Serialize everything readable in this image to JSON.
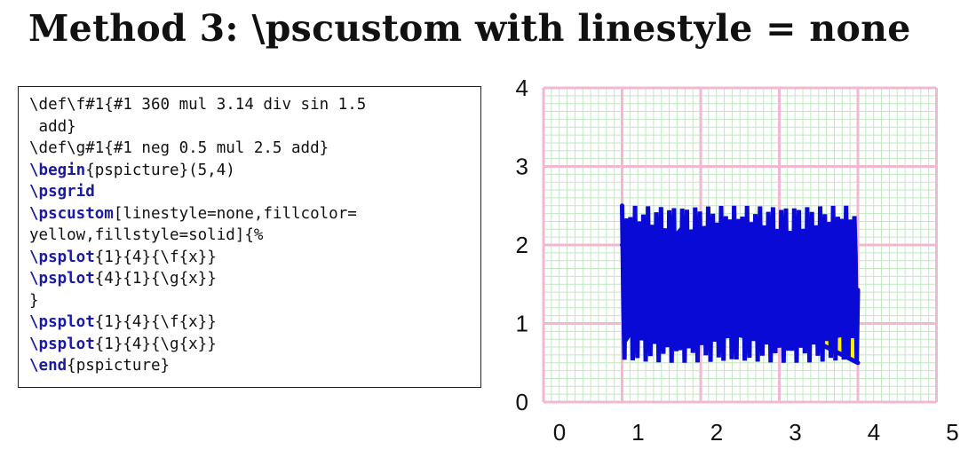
{
  "title": "Method 3: \\pscustom with linestyle = none",
  "code": {
    "lines": [
      [
        {
          "t": "\\def\\f#1{#1 360 mul 3.14 div sin 1.5",
          "k": false
        }
      ],
      [
        {
          "t": " add}",
          "k": false
        }
      ],
      [
        {
          "t": "\\def\\g#1{#1 neg 0.5 mul 2.5 add}",
          "k": false
        }
      ],
      [
        {
          "t": "\\begin",
          "k": true
        },
        {
          "t": "{pspicture}(5,4)",
          "k": false
        }
      ],
      [
        {
          "t": "\\psgrid",
          "k": true
        }
      ],
      [
        {
          "t": "\\pscustom",
          "k": true
        },
        {
          "t": "[linestyle=none,fillcolor=",
          "k": false
        }
      ],
      [
        {
          "t": "yellow,fillstyle=solid]{%",
          "k": false
        }
      ],
      [
        {
          "t": "\\psplot",
          "k": true
        },
        {
          "t": "{1}{4}{\\f{x}}",
          "k": false
        }
      ],
      [
        {
          "t": "\\psplot",
          "k": true
        },
        {
          "t": "{4}{1}{\\g{x}}",
          "k": false
        }
      ],
      [
        {
          "t": "}",
          "k": false
        }
      ],
      [
        {
          "t": "\\psplot",
          "k": true
        },
        {
          "t": "{1}{4}{\\f{x}}",
          "k": false
        }
      ],
      [
        {
          "t": "\\psplot",
          "k": true
        },
        {
          "t": "{1}{4}{\\g{x}}",
          "k": false
        }
      ],
      [
        {
          "t": "\\end",
          "k": true
        },
        {
          "t": "{pspicture}",
          "k": false
        }
      ]
    ]
  },
  "chart_data": {
    "type": "line",
    "xlim": [
      0,
      5
    ],
    "ylim": [
      0,
      4
    ],
    "xticks": [
      "0",
      "1",
      "2",
      "3",
      "4",
      "5"
    ],
    "yticks": [
      "0",
      "1",
      "2",
      "3",
      "4"
    ],
    "grid": true,
    "fill_color": "#fff200",
    "line_color": "#0a0ad6",
    "major_grid_color": "#f2b8d0",
    "minor_grid_color": "#bfe8c0",
    "x_range": [
      1,
      4
    ],
    "series": [
      {
        "function": "f",
        "formula": "sin(x*360/3.14) + 1.5"
      },
      {
        "function": "g",
        "formula": "-0.5*x + 2.5"
      }
    ]
  }
}
